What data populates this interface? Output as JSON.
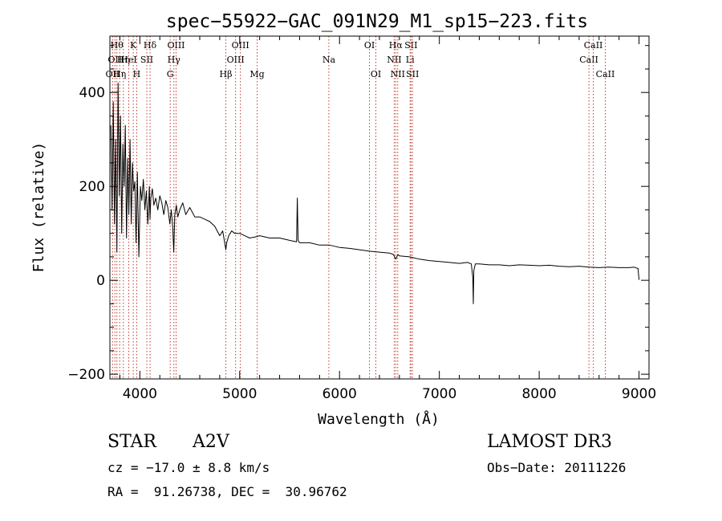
{
  "chart_data": {
    "type": "line",
    "title": "spec−55922−GAC_091N29_M1_sp15−223.fits",
    "xlabel": "Wavelength (Å)",
    "ylabel": "Flux (relative)",
    "xlim": [
      3700,
      9100
    ],
    "ylim": [
      -210,
      520
    ],
    "xticks": [
      4000,
      5000,
      6000,
      7000,
      8000,
      9000
    ],
    "xtick_labels": [
      "4000",
      "5000",
      "6000",
      "7000",
      "8000",
      "9000"
    ],
    "yticks": [
      -200,
      0,
      200,
      400
    ],
    "ytick_labels": [
      "−200",
      "0",
      "200",
      "400"
    ],
    "series": [
      {
        "name": "spectrum",
        "x": [
          3710,
          3722,
          3734,
          3746,
          3758,
          3770,
          3782,
          3794,
          3806,
          3818,
          3830,
          3842,
          3854,
          3866,
          3878,
          3890,
          3902,
          3914,
          3926,
          3938,
          3950,
          3962,
          3975,
          3990,
          4005,
          4020,
          4035,
          4050,
          4065,
          4080,
          4095,
          4102,
          4110,
          4125,
          4140,
          4160,
          4180,
          4200,
          4220,
          4240,
          4260,
          4280,
          4300,
          4315,
          4330,
          4340,
          4350,
          4365,
          4380,
          4400,
          4430,
          4460,
          4500,
          4550,
          4600,
          4650,
          4700,
          4750,
          4800,
          4830,
          4850,
          4861,
          4870,
          4890,
          4920,
          4950,
          5000,
          5050,
          5100,
          5150,
          5200,
          5300,
          5400,
          5500,
          5570,
          5577,
          5585,
          5600,
          5700,
          5800,
          5900,
          6000,
          6100,
          6200,
          6300,
          6400,
          6500,
          6540,
          6563,
          6585,
          6600,
          6700,
          6800,
          6900,
          7000,
          7100,
          7200,
          7280,
          7320,
          7335,
          7340,
          7345,
          7360,
          7400,
          7500,
          7600,
          7700,
          7800,
          7900,
          8000,
          8100,
          8200,
          8300,
          8400,
          8500,
          8600,
          8700,
          8800,
          8900,
          8950,
          8990,
          9000
        ],
        "values": [
          330,
          150,
          380,
          120,
          300,
          60,
          420,
          180,
          350,
          100,
          290,
          200,
          330,
          90,
          260,
          140,
          300,
          120,
          250,
          190,
          210,
          80,
          230,
          50,
          200,
          170,
          215,
          150,
          190,
          120,
          200,
          130,
          175,
          195,
          160,
          175,
          150,
          180,
          165,
          140,
          170,
          155,
          120,
          150,
          110,
          60,
          140,
          160,
          135,
          150,
          165,
          140,
          155,
          135,
          135,
          130,
          125,
          115,
          95,
          105,
          80,
          65,
          80,
          95,
          105,
          100,
          100,
          95,
          90,
          92,
          95,
          90,
          90,
          85,
          82,
          175,
          85,
          80,
          80,
          75,
          75,
          70,
          68,
          65,
          62,
          60,
          58,
          55,
          45,
          55,
          52,
          50,
          45,
          42,
          40,
          38,
          36,
          38,
          35,
          5,
          -50,
          20,
          35,
          35,
          33,
          33,
          31,
          33,
          32,
          31,
          32,
          30,
          29,
          30,
          28,
          27,
          28,
          27,
          27,
          28,
          25,
          1
        ]
      }
    ],
    "lines": [
      {
        "wavelength": 3727,
        "label": "OII",
        "row": 2
      },
      {
        "wavelength": 3750,
        "label": "OII",
        "row": 1
      },
      {
        "wavelength": 3770,
        "label": "Hθ",
        "row": 0
      },
      {
        "wavelength": 3798,
        "label": "Hη",
        "row": 2
      },
      {
        "wavelength": 3835,
        "label": "Hη",
        "row": 1
      },
      {
        "wavelength": 3889,
        "label": "HeI",
        "row": 1
      },
      {
        "wavelength": 3934,
        "label": "K",
        "row": 0
      },
      {
        "wavelength": 3969,
        "label": "H",
        "row": 2
      },
      {
        "wavelength": 4070,
        "label": "SII",
        "row": 1
      },
      {
        "wavelength": 4102,
        "label": "Hδ",
        "row": 0
      },
      {
        "wavelength": 4304,
        "label": "G",
        "row": 2
      },
      {
        "wavelength": 4341,
        "label": "Hγ",
        "row": 1
      },
      {
        "wavelength": 4363,
        "label": "OIII",
        "row": 0
      },
      {
        "wavelength": 4861,
        "label": "Hβ",
        "row": 2
      },
      {
        "wavelength": 4959,
        "label": "OIII",
        "row": 1
      },
      {
        "wavelength": 5007,
        "label": "OIII",
        "row": 0
      },
      {
        "wavelength": 5175,
        "label": "Mg",
        "row": 2
      },
      {
        "wavelength": 5893,
        "label": "Na",
        "row": 1
      },
      {
        "wavelength": 6300,
        "label": "OI",
        "row": 0
      },
      {
        "wavelength": 6364,
        "label": "OI",
        "row": 2
      },
      {
        "wavelength": 6548,
        "label": "NII",
        "row": 1
      },
      {
        "wavelength": 6563,
        "label": "Hα",
        "row": 0
      },
      {
        "wavelength": 6583,
        "label": "NII",
        "row": 2
      },
      {
        "wavelength": 6707,
        "label": "Li",
        "row": 1
      },
      {
        "wavelength": 6716,
        "label": "SII",
        "row": 0
      },
      {
        "wavelength": 6731,
        "label": "SII",
        "row": 2
      },
      {
        "wavelength": 8498,
        "label": "CaII",
        "row": 1
      },
      {
        "wavelength": 8542,
        "label": "CaII",
        "row": 0
      },
      {
        "wavelength": 8662,
        "label": "CaII",
        "row": 2
      }
    ]
  },
  "info": {
    "class_label": "STAR",
    "subclass_label": "A2V",
    "survey_label": "LAMOST DR3",
    "cz_text": "cz = −17.0 ± 8.8 km/s",
    "obs_date_text": "Obs−Date: 20111226",
    "coords_text": "RA =  91.26738, DEC =  30.96762"
  },
  "colors": {
    "spectrum": "#000000",
    "line_marker": "#c0392b",
    "axis": "#000000"
  }
}
